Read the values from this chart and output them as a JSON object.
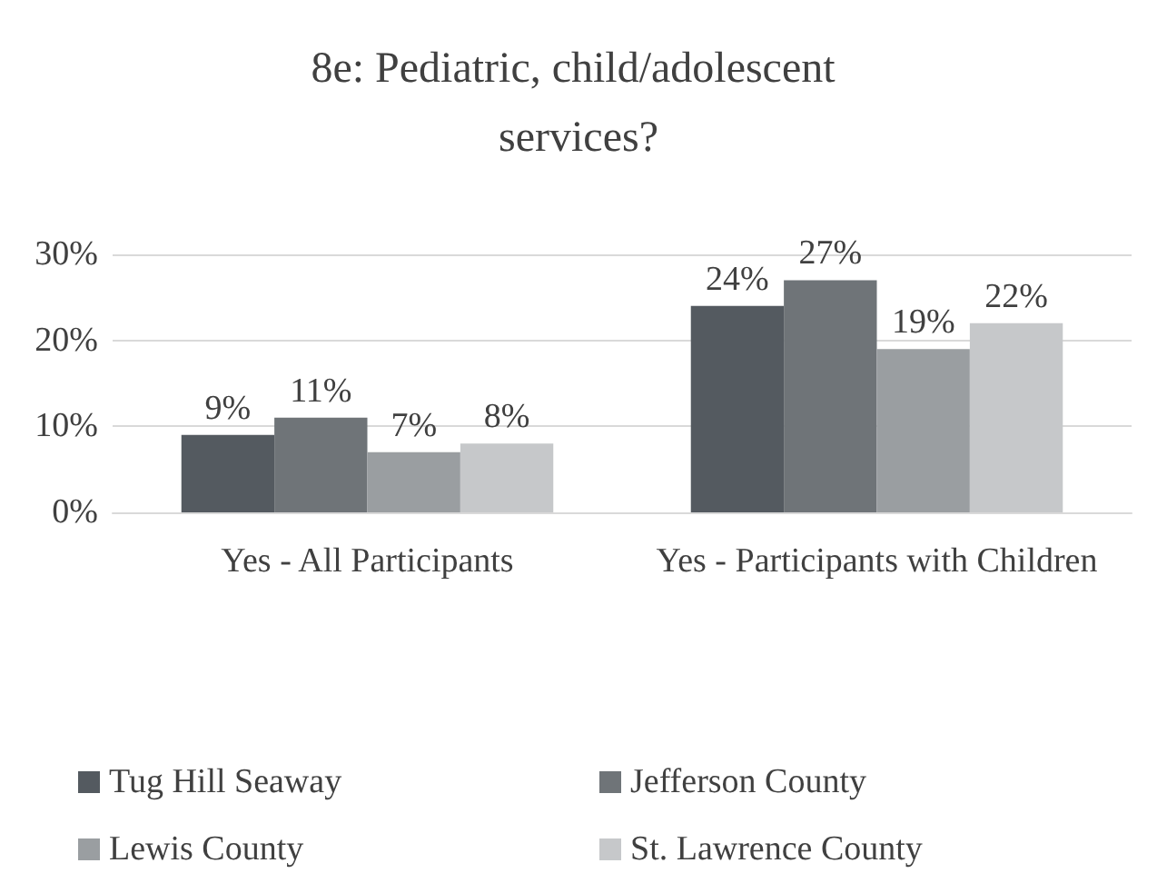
{
  "chart_data": {
    "type": "bar",
    "title": "8e: Pediatric, child/adolescent services?",
    "categories": [
      "Yes - All Participants",
      "Yes - Participants with Children"
    ],
    "series": [
      {
        "name": "Tug Hill Seaway",
        "color": "#545a60",
        "values": [
          9,
          24
        ],
        "value_labels": [
          "9%",
          "24%"
        ]
      },
      {
        "name": "Jefferson County",
        "color": "#6f7478",
        "values": [
          11,
          27
        ],
        "value_labels": [
          "11%",
          "27%"
        ]
      },
      {
        "name": "Lewis County",
        "color": "#9a9ea1",
        "values": [
          7,
          19
        ],
        "value_labels": [
          "7%",
          "19%"
        ]
      },
      {
        "name": "St. Lawrence County",
        "color": "#c6c8ca",
        "values": [
          8,
          22
        ],
        "value_labels": [
          "8%",
          "22%"
        ]
      }
    ],
    "ylim": [
      0,
      30
    ],
    "yticks": [
      {
        "value": 0,
        "label": "0%"
      },
      {
        "value": 10,
        "label": "10%"
      },
      {
        "value": 20,
        "label": "20%"
      },
      {
        "value": 30,
        "label": "30%"
      }
    ],
    "grid": "y",
    "legend": "bottom"
  }
}
